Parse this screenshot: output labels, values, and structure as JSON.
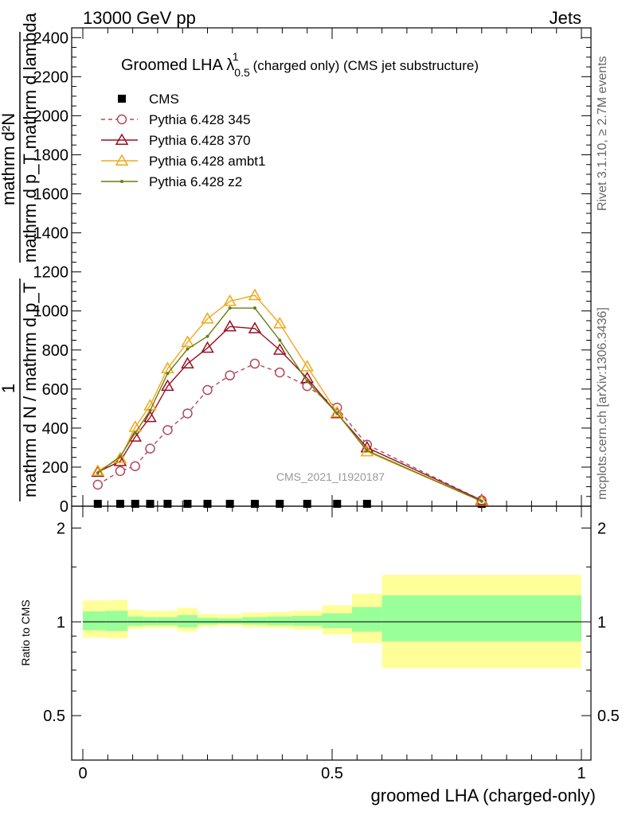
{
  "header": {
    "left": "13000 GeV pp",
    "right": "Jets"
  },
  "side": {
    "rivet": "Rivet 3.1.10, ≥ 2.7M events",
    "mcplots": "mcplots.cern.ch [arXiv:1306.3436]"
  },
  "title": {
    "main": "Groomed LHA λ",
    "sup": "1",
    "sub": "0.5",
    "rest": "(charged only) (CMS jet substructure)"
  },
  "watermark": "CMS_2021_I1920187",
  "ylabel": {
    "numerator": "mathrm d²N",
    "denominator": "mathrm d p_T mathrm d lambda",
    "one": "1",
    "norm": "mathrm d N / mathrm d p_T"
  },
  "chart_data": [
    {
      "type": "line",
      "title": "Groomed LHA λ^1_0.5 (charged only) (CMS jet substructure)",
      "xlabel": "groomed LHA (charged-only)",
      "ylabel": "1/(mathrm d N / mathrm d p_T) mathrm d²N / (mathrm d p_T mathrm d lambda)",
      "xlim": [
        0,
        1
      ],
      "ylim": [
        0,
        2450
      ],
      "x_ticks": [
        "0",
        "0.5",
        "1"
      ],
      "y_ticks": [
        "0",
        "200",
        "400",
        "600",
        "800",
        "1000",
        "1200",
        "1400",
        "1600",
        "1800",
        "2000",
        "2200",
        "2400"
      ],
      "legend_position": "top-left",
      "x": [
        0.03,
        0.075,
        0.105,
        0.135,
        0.17,
        0.21,
        0.25,
        0.295,
        0.345,
        0.395,
        0.45,
        0.51,
        0.57,
        0.8
      ],
      "series": [
        {
          "name": "CMS",
          "style": "markers",
          "color": "#000000",
          "values": [
            0,
            0,
            0,
            0,
            0,
            0,
            0,
            0,
            0,
            0,
            0,
            0,
            0,
            0
          ]
        },
        {
          "name": "Pythia 6.428 345",
          "style": "dashed-circle",
          "color": "#b04a5a",
          "values": [
            110,
            180,
            205,
            295,
            390,
            475,
            595,
            670,
            730,
            685,
            615,
            505,
            315,
            30
          ]
        },
        {
          "name": "Pythia 6.428 370",
          "style": "solid-triangle-open",
          "color": "#9a1020",
          "values": [
            175,
            230,
            355,
            455,
            615,
            730,
            810,
            920,
            910,
            800,
            655,
            475,
            300,
            30
          ]
        },
        {
          "name": "Pythia 6.428 ambt1",
          "style": "solid-triangle-open",
          "color": "#f0a818",
          "values": [
            180,
            245,
            405,
            515,
            705,
            840,
            960,
            1050,
            1080,
            935,
            715,
            480,
            280,
            25
          ]
        },
        {
          "name": "Pythia 6.428 z2",
          "style": "solid-dot",
          "color": "#6b7c10",
          "values": [
            170,
            255,
            375,
            490,
            680,
            805,
            870,
            1015,
            1015,
            850,
            640,
            475,
            285,
            25
          ]
        }
      ]
    },
    {
      "type": "area",
      "title": "",
      "xlabel": "groomed LHA (charged-only)",
      "ylabel": "Ratio to CMS",
      "xlim": [
        0,
        1
      ],
      "ylim": [
        0.36,
        2.35
      ],
      "y_scale": "log",
      "y_ticks": [
        "0.5",
        "1",
        "2"
      ],
      "reference_line": 1,
      "bins": [
        {
          "x0": 0.0,
          "x1": 0.045,
          "yellow": [
            0.89,
            1.17
          ],
          "green": [
            0.94,
            1.08
          ]
        },
        {
          "x0": 0.045,
          "x1": 0.09,
          "yellow": [
            0.885,
            1.175
          ],
          "green": [
            0.935,
            1.085
          ]
        },
        {
          "x0": 0.09,
          "x1": 0.12,
          "yellow": [
            0.95,
            1.095
          ],
          "green": [
            0.97,
            1.04
          ]
        },
        {
          "x0": 0.12,
          "x1": 0.15,
          "yellow": [
            0.955,
            1.085
          ],
          "green": [
            0.975,
            1.035
          ]
        },
        {
          "x0": 0.15,
          "x1": 0.19,
          "yellow": [
            0.955,
            1.085
          ],
          "green": [
            0.975,
            1.035
          ]
        },
        {
          "x0": 0.19,
          "x1": 0.23,
          "yellow": [
            0.93,
            1.11
          ],
          "green": [
            0.96,
            1.05
          ]
        },
        {
          "x0": 0.23,
          "x1": 0.27,
          "yellow": [
            0.965,
            1.06
          ],
          "green": [
            0.98,
            1.03
          ]
        },
        {
          "x0": 0.27,
          "x1": 0.32,
          "yellow": [
            0.97,
            1.055
          ],
          "green": [
            0.985,
            1.025
          ]
        },
        {
          "x0": 0.32,
          "x1": 0.37,
          "yellow": [
            0.96,
            1.07
          ],
          "green": [
            0.98,
            1.035
          ]
        },
        {
          "x0": 0.37,
          "x1": 0.42,
          "yellow": [
            0.955,
            1.075
          ],
          "green": [
            0.975,
            1.04
          ]
        },
        {
          "x0": 0.42,
          "x1": 0.48,
          "yellow": [
            0.945,
            1.085
          ],
          "green": [
            0.97,
            1.045
          ]
        },
        {
          "x0": 0.48,
          "x1": 0.54,
          "yellow": [
            0.91,
            1.13
          ],
          "green": [
            0.955,
            1.065
          ]
        },
        {
          "x0": 0.54,
          "x1": 0.6,
          "yellow": [
            0.855,
            1.23
          ],
          "green": [
            0.93,
            1.115
          ]
        },
        {
          "x0": 0.6,
          "x1": 1.0,
          "yellow": [
            0.71,
            1.415
          ],
          "green": [
            0.865,
            1.215
          ]
        }
      ]
    }
  ]
}
